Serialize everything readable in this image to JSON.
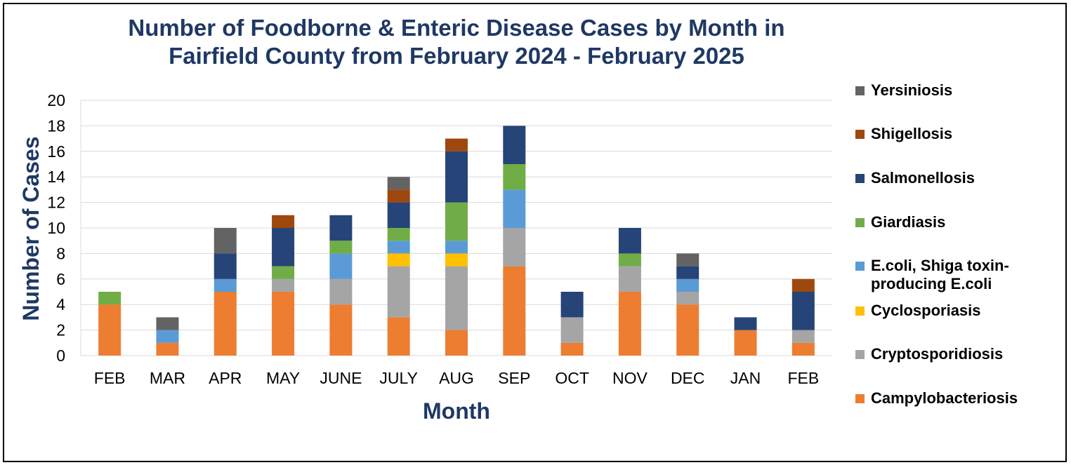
{
  "chart_data": {
    "type": "bar",
    "stacked": true,
    "title": "Number of Foodborne & Enteric Disease Cases by Month in Fairfield County from February 2024 - February 2025",
    "xlabel": "Month",
    "ylabel": "Number of Cases",
    "ylim": [
      0,
      20
    ],
    "yticks": [
      "0",
      "2",
      "4",
      "6",
      "8",
      "10",
      "12",
      "14",
      "16",
      "18",
      "20"
    ],
    "grid": true,
    "legend_position": "right",
    "categories": [
      "FEB",
      "MAR",
      "APR",
      "MAY",
      "JUNE",
      "JULY",
      "AUG",
      "SEP",
      "OCT",
      "NOV",
      "DEC",
      "JAN",
      "FEB"
    ],
    "series": [
      {
        "name": "Campylobacteriosis",
        "color": "#ed7d31",
        "values": [
          4,
          1,
          5,
          5,
          4,
          3,
          2,
          7,
          1,
          5,
          4,
          2,
          1
        ]
      },
      {
        "name": "Cryptosporidiosis",
        "color": "#a5a5a5",
        "values": [
          0,
          0,
          0,
          1,
          2,
          4,
          5,
          3,
          2,
          2,
          1,
          0,
          1
        ]
      },
      {
        "name": "Cyclosporiasis",
        "color": "#ffc000",
        "values": [
          0,
          0,
          0,
          0,
          0,
          1,
          1,
          0,
          0,
          0,
          0,
          0,
          0
        ]
      },
      {
        "name": "E.coli, Shiga toxin-producing E.coli",
        "color": "#5b9bd5",
        "values": [
          0,
          1,
          1,
          0,
          2,
          1,
          1,
          3,
          0,
          0,
          1,
          0,
          0
        ]
      },
      {
        "name": "Giardiasis",
        "color": "#70ad47",
        "values": [
          1,
          0,
          0,
          1,
          1,
          1,
          3,
          2,
          0,
          1,
          0,
          0,
          0
        ]
      },
      {
        "name": "Salmonellosis",
        "color": "#264478",
        "values": [
          0,
          0,
          2,
          3,
          2,
          2,
          4,
          3,
          2,
          2,
          1,
          1,
          3
        ]
      },
      {
        "name": "Shigellosis",
        "color": "#9e480e",
        "values": [
          0,
          0,
          0,
          1,
          0,
          1,
          1,
          0,
          0,
          0,
          0,
          0,
          1
        ]
      },
      {
        "name": "Yersiniosis",
        "color": "#636363",
        "values": [
          0,
          1,
          2,
          0,
          0,
          1,
          0,
          0,
          0,
          0,
          1,
          0,
          0
        ]
      }
    ],
    "legend_order": [
      "Yersiniosis",
      "Shigellosis",
      "Salmonellosis",
      "Giardiasis",
      "E.coli, Shiga toxin-producing E.coli",
      "Cyclosporiasis",
      "Cryptosporidiosis",
      "Campylobacteriosis"
    ]
  }
}
